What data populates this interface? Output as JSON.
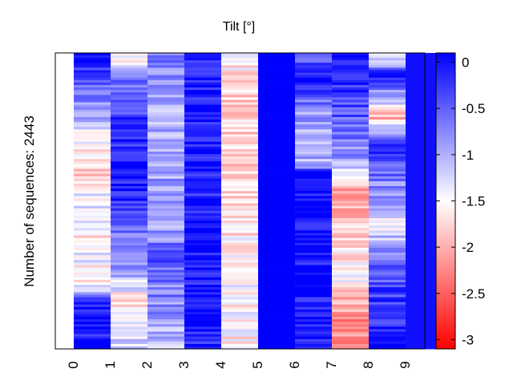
{
  "chart_data": {
    "type": "heatmap",
    "title": "Tilt [°]",
    "ylabel": "Number of sequences: 2443",
    "xlabel": "",
    "categories": [
      "0",
      "1",
      "2",
      "3",
      "4",
      "5",
      "6",
      "7",
      "8",
      "9"
    ],
    "colorbar": {
      "range": [
        -3.1,
        0.1
      ],
      "ticks": [
        "0",
        "-0.5",
        "-1",
        "-1.5",
        "-2",
        "-2.5",
        "-3"
      ],
      "tick_values": [
        0,
        -0.5,
        -1,
        -1.5,
        -2,
        -2.5,
        -3
      ],
      "colors": {
        "high": "#0000ff",
        "mid": "#ffffff",
        "low": "#ff0000"
      },
      "mid_value": -1.5
    },
    "columns": [
      {
        "label": "0",
        "profile": [
          [
            0.0,
            0.1
          ],
          [
            0.08,
            -0.4
          ],
          [
            0.2,
            -0.9
          ],
          [
            0.3,
            -1.6
          ],
          [
            0.42,
            -1.8
          ],
          [
            0.52,
            -1.2
          ],
          [
            0.62,
            -1.6
          ],
          [
            0.7,
            -1.4
          ],
          [
            0.78,
            -1.7
          ],
          [
            0.85,
            0.0
          ],
          [
            1.0,
            0.0
          ]
        ]
      },
      {
        "label": "1",
        "profile": [
          [
            0.0,
            -1.7
          ],
          [
            0.1,
            -0.6
          ],
          [
            0.3,
            -0.1
          ],
          [
            0.4,
            0.0
          ],
          [
            0.62,
            -0.6
          ],
          [
            0.75,
            -1.0
          ],
          [
            0.85,
            -1.8
          ],
          [
            1.0,
            -1.1
          ]
        ]
      },
      {
        "label": "2",
        "profile": [
          [
            0.0,
            -0.7
          ],
          [
            0.2,
            -1.0
          ],
          [
            0.4,
            -0.9
          ],
          [
            0.55,
            -1.0
          ],
          [
            0.7,
            -0.5
          ],
          [
            0.85,
            -0.8
          ],
          [
            1.0,
            -1.1
          ]
        ]
      },
      {
        "label": "3",
        "profile": [
          [
            0.0,
            -0.1
          ],
          [
            0.2,
            0.0
          ],
          [
            0.5,
            -0.1
          ],
          [
            0.8,
            0.0
          ],
          [
            1.0,
            -0.1
          ]
        ]
      },
      {
        "label": "4",
        "profile": [
          [
            0.0,
            -1.5
          ],
          [
            0.1,
            -1.7
          ],
          [
            0.3,
            -1.8
          ],
          [
            0.55,
            -1.7
          ],
          [
            0.8,
            -1.5
          ],
          [
            1.0,
            -1.6
          ]
        ]
      },
      {
        "label": "5",
        "profile": [
          [
            0.0,
            0.1
          ],
          [
            1.0,
            0.1
          ]
        ]
      },
      {
        "label": "6",
        "profile": [
          [
            0.0,
            -0.8
          ],
          [
            0.08,
            0.0
          ],
          [
            0.2,
            -0.9
          ],
          [
            0.38,
            -1.0
          ],
          [
            0.4,
            0.0
          ],
          [
            1.0,
            0.0
          ]
        ]
      },
      {
        "label": "7",
        "profile": [
          [
            0.0,
            0.0
          ],
          [
            0.2,
            -0.4
          ],
          [
            0.36,
            -0.8
          ],
          [
            0.45,
            -2.0
          ],
          [
            0.6,
            -1.8
          ],
          [
            0.75,
            -1.5
          ],
          [
            0.9,
            -2.3
          ],
          [
            1.0,
            -2.1
          ]
        ]
      },
      {
        "label": "8",
        "profile": [
          [
            0.0,
            -1.8
          ],
          [
            0.08,
            0.0
          ],
          [
            0.22,
            -2.0
          ],
          [
            0.3,
            0.0
          ],
          [
            0.58,
            -1.4
          ],
          [
            0.75,
            -0.4
          ],
          [
            1.0,
            0.0
          ]
        ]
      },
      {
        "label": "9",
        "profile": [
          [
            0.0,
            0.0
          ],
          [
            1.0,
            0.0
          ]
        ]
      }
    ]
  }
}
